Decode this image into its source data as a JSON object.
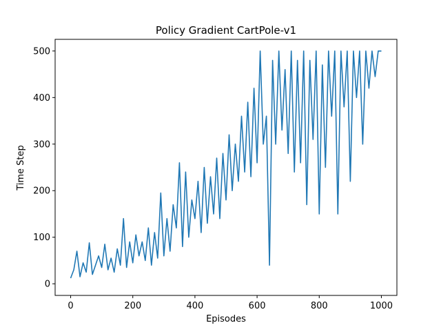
{
  "chart_data": {
    "type": "line",
    "title": "Policy Gradient CartPole-v1",
    "xlabel": "Episodes",
    "ylabel": "Time Step",
    "xlim": [
      -50,
      1050
    ],
    "ylim": [
      -25,
      525
    ],
    "xticks": [
      0,
      200,
      400,
      600,
      800,
      1000
    ],
    "yticks": [
      0,
      100,
      200,
      300,
      400,
      500
    ],
    "grid": false,
    "legend": "none",
    "line_color": "#1f77b4",
    "series": [
      {
        "x": [
          0,
          10,
          20,
          30,
          40,
          50,
          60,
          70,
          80,
          90,
          100,
          110,
          120,
          130,
          140,
          150,
          160,
          170,
          180,
          190,
          200,
          210,
          220,
          230,
          240,
          250,
          260,
          270,
          280,
          290,
          300,
          310,
          320,
          330,
          340,
          350,
          360,
          370,
          380,
          390,
          400,
          410,
          420,
          430,
          440,
          450,
          460,
          470,
          480,
          490,
          500,
          510,
          520,
          530,
          540,
          550,
          560,
          570,
          580,
          590,
          600,
          610,
          620,
          630,
          640,
          650,
          660,
          670,
          680,
          690,
          700,
          710,
          720,
          730,
          740,
          750,
          760,
          770,
          780,
          790,
          800,
          810,
          820,
          830,
          840,
          850,
          860,
          870,
          880,
          890,
          900,
          910,
          920,
          930,
          940,
          950,
          960,
          970,
          980,
          990,
          1000
        ],
        "y": [
          12,
          30,
          70,
          15,
          45,
          25,
          88,
          20,
          40,
          60,
          35,
          85,
          30,
          55,
          25,
          75,
          40,
          140,
          35,
          90,
          45,
          105,
          60,
          90,
          50,
          120,
          40,
          110,
          55,
          195,
          60,
          140,
          70,
          170,
          120,
          260,
          80,
          240,
          100,
          180,
          140,
          220,
          110,
          250,
          130,
          230,
          150,
          270,
          140,
          280,
          180,
          320,
          200,
          300,
          220,
          360,
          240,
          390,
          230,
          420,
          260,
          500,
          300,
          360,
          40,
          480,
          300,
          500,
          330,
          460,
          280,
          500,
          240,
          480,
          260,
          500,
          170,
          480,
          310,
          500,
          150,
          470,
          250,
          500,
          360,
          500,
          150,
          500,
          380,
          500,
          220,
          500,
          400,
          500,
          300,
          500,
          420,
          500,
          445,
          500,
          500
        ]
      }
    ]
  }
}
